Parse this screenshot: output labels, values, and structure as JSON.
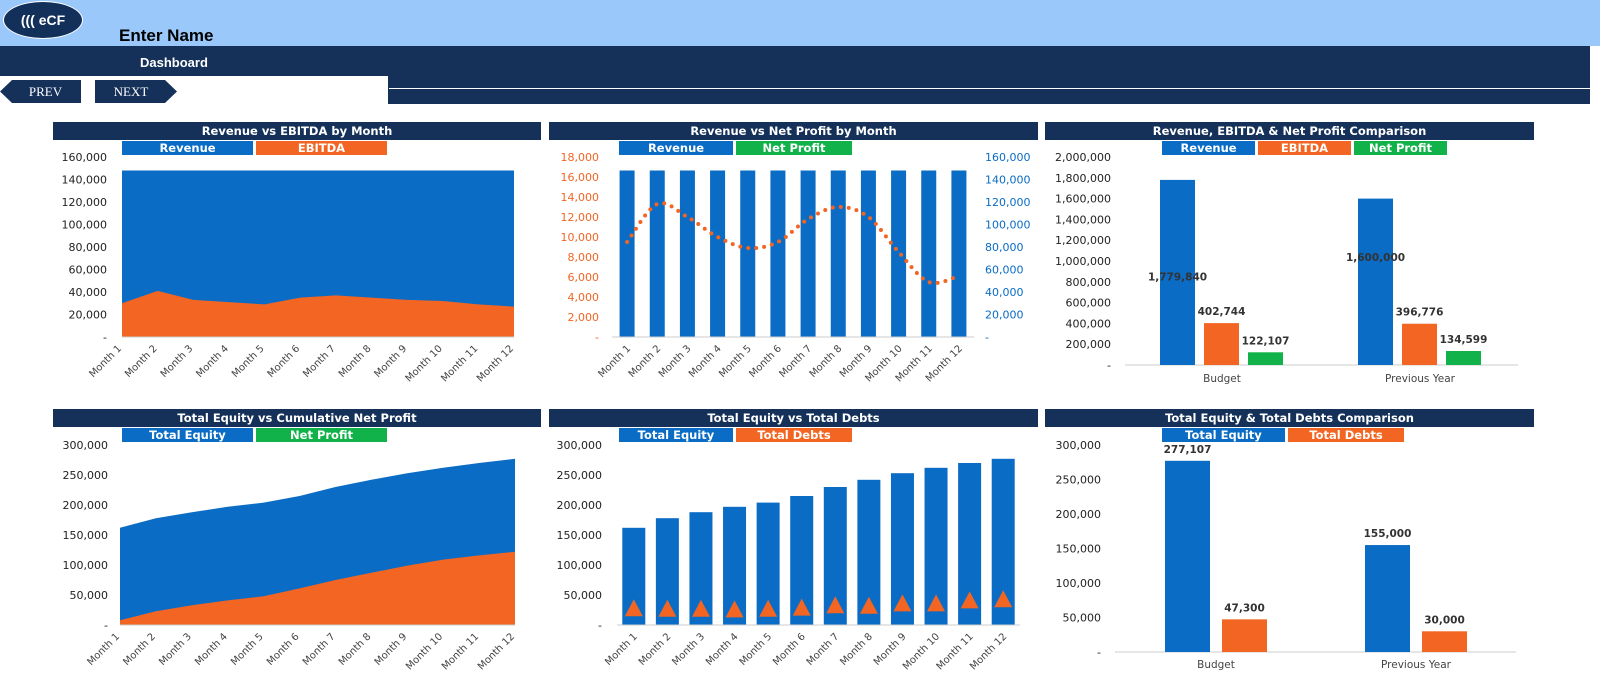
{
  "header": {
    "logo_text": "((( eCF",
    "name": "Enter Name",
    "section": "Dashboard"
  },
  "nav": {
    "prev": "PREV",
    "next": "NEXT"
  },
  "colors": {
    "revenue": "#0a6cc4",
    "ebitda": "#f26522",
    "net_profit": "#12b24a",
    "navy": "#15315a",
    "header_blue": "#9bc8fa"
  },
  "months": [
    "Month 1",
    "Month 2",
    "Month 3",
    "Month 4",
    "Month 5",
    "Month 6",
    "Month 7",
    "Month 8",
    "Month 9",
    "Month 10",
    "Month 11",
    "Month 12"
  ],
  "chart_data": [
    {
      "id": "c1",
      "type": "area",
      "title": "Revenue vs EBITDA by Month",
      "legend": [
        "Revenue",
        "EBITDA"
      ],
      "y_ticks": [
        "160,000",
        "140,000",
        "120,000",
        "100,000",
        "80,000",
        "60,000",
        "40,000",
        "20,000",
        "-"
      ],
      "ylim": [
        0,
        160000
      ],
      "series": [
        {
          "name": "Revenue",
          "values": [
            148000,
            148000,
            148000,
            148000,
            148000,
            148000,
            148000,
            148000,
            148000,
            148000,
            148000,
            148000
          ]
        },
        {
          "name": "EBITDA",
          "values": [
            30000,
            41000,
            33000,
            31000,
            29000,
            35000,
            37000,
            35000,
            33000,
            32000,
            29000,
            27000
          ]
        }
      ]
    },
    {
      "id": "c2",
      "type": "bar",
      "title": "Revenue vs Net Profit by Month",
      "legend": [
        "Revenue",
        "Net Profit"
      ],
      "y_ticks_left": [
        "18,000",
        "16,000",
        "14,000",
        "12,000",
        "10,000",
        "8,000",
        "6,000",
        "4,000",
        "2,000",
        "-"
      ],
      "y_ticks_right": [
        "160,000",
        "140,000",
        "120,000",
        "100,000",
        "80,000",
        "60,000",
        "40,000",
        "20,000",
        "-"
      ],
      "ylim_left": [
        0,
        18000
      ],
      "ylim_right": [
        0,
        160000
      ],
      "series": [
        {
          "name": "Revenue",
          "axis": "right",
          "values": [
            148000,
            148000,
            148000,
            148000,
            148000,
            148000,
            148000,
            148000,
            148000,
            148000,
            148000,
            148000
          ]
        },
        {
          "name": "Net Profit",
          "axis": "left",
          "values": [
            9500,
            13300,
            12000,
            10000,
            8900,
            9500,
            11800,
            13000,
            12000,
            8500,
            5500,
            6100
          ]
        }
      ]
    },
    {
      "id": "c3",
      "type": "bar",
      "title": "Revenue, EBITDA & Net Profit Comparison",
      "legend": [
        "Revenue",
        "EBITDA",
        "Net Profit"
      ],
      "y_ticks": [
        "2,000,000",
        "1,800,000",
        "1,600,000",
        "1,400,000",
        "1,200,000",
        "1,000,000",
        "800,000",
        "600,000",
        "400,000",
        "200,000",
        "-"
      ],
      "ylim": [
        0,
        2000000
      ],
      "categories": [
        "Budget",
        "Previous Year"
      ],
      "series": [
        {
          "name": "Revenue",
          "values": [
            1779840,
            1600000
          ],
          "labels": [
            "1,779,840",
            "1,600,000"
          ]
        },
        {
          "name": "EBITDA",
          "values": [
            402744,
            396776
          ],
          "labels": [
            "402,744",
            "396,776"
          ]
        },
        {
          "name": "Net Profit",
          "values": [
            122107,
            134599
          ],
          "labels": [
            "122,107",
            "134,599"
          ]
        }
      ]
    },
    {
      "id": "c4",
      "type": "area",
      "title": "Total Equity vs Cumulative Net Profit",
      "legend": [
        "Total Equity",
        "Net Profit"
      ],
      "y_ticks": [
        "300,000",
        "250,000",
        "200,000",
        "150,000",
        "100,000",
        "50,000",
        "-"
      ],
      "ylim": [
        0,
        300000
      ],
      "series": [
        {
          "name": "Total Equity",
          "values": [
            162000,
            178000,
            188000,
            197000,
            204000,
            215000,
            230000,
            242000,
            253000,
            262000,
            270000,
            277000
          ]
        },
        {
          "name": "Net Profit",
          "values": [
            8000,
            23000,
            33000,
            41000,
            48000,
            61000,
            75000,
            87000,
            99000,
            109000,
            116000,
            122000
          ]
        }
      ]
    },
    {
      "id": "c5",
      "type": "bar",
      "title": "Total Equity vs Total Debts",
      "legend": [
        "Total Equity",
        "Total Debts"
      ],
      "y_ticks": [
        "300,000",
        "250,000",
        "200,000",
        "150,000",
        "100,000",
        "50,000",
        "-"
      ],
      "ylim": [
        0,
        300000
      ],
      "series": [
        {
          "name": "Total Equity",
          "values": [
            162000,
            178000,
            188000,
            197000,
            204000,
            215000,
            230000,
            242000,
            253000,
            262000,
            270000,
            277000
          ]
        },
        {
          "name": "Total Debts",
          "values": [
            28000,
            27000,
            27000,
            26000,
            27000,
            29000,
            33000,
            32000,
            36000,
            36000,
            41000,
            43000
          ]
        }
      ]
    },
    {
      "id": "c6",
      "type": "bar",
      "title": "Total Equity & Total Debts Comparison",
      "legend": [
        "Total Equity",
        "Total Debts"
      ],
      "y_ticks": [
        "300,000",
        "250,000",
        "200,000",
        "150,000",
        "100,000",
        "50,000",
        "-"
      ],
      "ylim": [
        0,
        300000
      ],
      "categories": [
        "Budget",
        "Previous Year"
      ],
      "series": [
        {
          "name": "Total Equity",
          "values": [
            277107,
            155000
          ],
          "labels": [
            "277,107",
            "155,000"
          ]
        },
        {
          "name": "Total Debts",
          "values": [
            47300,
            30000
          ],
          "labels": [
            "47,300",
            "30,000"
          ]
        }
      ]
    }
  ]
}
